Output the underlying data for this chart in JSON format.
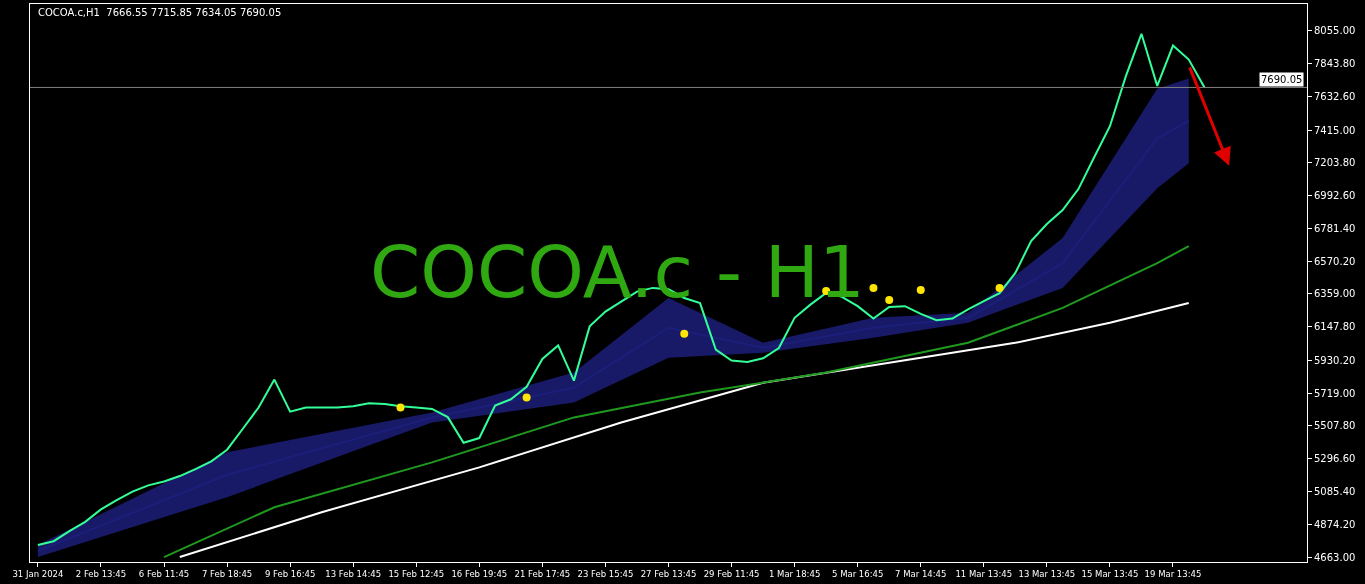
{
  "chart_data": {
    "type": "line",
    "title": "COCOA.c,H1  7666.55 7715.85 7634.05 7690.05",
    "annotations": [
      "COCOA.c - H1"
    ],
    "categories": [
      "31 Jan 2024",
      null,
      null,
      null,
      "2 Feb 13:45",
      null,
      null,
      null,
      "6 Feb 11:45",
      null,
      null,
      null,
      "7 Feb 18:45",
      null,
      null,
      null,
      "9 Feb 16:45",
      null,
      null,
      null,
      "13 Feb 14:45",
      null,
      null,
      null,
      "15 Feb 12:45",
      null,
      null,
      null,
      "16 Feb 19:45",
      null,
      null,
      null,
      "21 Feb 17:45",
      null,
      null,
      null,
      "23 Feb 15:45",
      null,
      null,
      null,
      "27 Feb 13:45",
      null,
      null,
      null,
      "29 Feb 11:45",
      null,
      null,
      null,
      "1 Mar 18:45",
      null,
      null,
      null,
      "5 Mar 16:45",
      null,
      null,
      null,
      "7 Mar 14:45",
      null,
      null,
      null,
      "11 Mar 13:45",
      null,
      null,
      null,
      "13 Mar 13:45",
      null,
      null,
      null,
      "15 Mar 13:45",
      null,
      null,
      null,
      "19 Mar 13:45",
      null,
      null,
      null,
      null,
      null,
      null,
      null,
      null
    ],
    "series": [
      {
        "color": "#1c1f7a",
        "values": [
          4702,
          null,
          null,
          null,
          null,
          null,
          null,
          null,
          null,
          null,
          null,
          null,
          5193,
          null,
          null,
          null,
          null,
          null,
          null,
          null,
          null,
          null,
          null,
          null,
          null,
          5562,
          null,
          null,
          null,
          null,
          null,
          null,
          null,
          null,
          5755,
          null,
          null,
          null,
          null,
          null,
          6141,
          null,
          null,
          null,
          null,
          null,
          6012,
          null,
          null,
          null,
          null,
          null,
          null,
          6141,
          null,
          null,
          null,
          null,
          null,
          6205,
          null,
          null,
          null,
          null,
          null,
          6558,
          null,
          null,
          null,
          null,
          null,
          7361,
          null,
          7474,
          null,
          null,
          null,
          null,
          null,
          null,
          null
        ],
        "lower": [
          4663,
          null,
          null,
          null,
          null,
          null,
          null,
          null,
          null,
          null,
          null,
          null,
          5049,
          null,
          null,
          null,
          null,
          null,
          null,
          null,
          null,
          null,
          null,
          null,
          null,
          5530,
          null,
          null,
          null,
          null,
          null,
          null,
          null,
          null,
          5659,
          null,
          null,
          null,
          null,
          null,
          5948,
          null,
          null,
          null,
          null,
          null,
          5980,
          null,
          null,
          null,
          null,
          null,
          null,
          6076,
          null,
          null,
          null,
          null,
          null,
          6173,
          null,
          null,
          null,
          null,
          null,
          6398,
          null,
          null,
          null,
          null,
          null,
          7040,
          null,
          7201,
          null,
          null,
          null,
          null,
          null,
          null,
          null
        ],
        "upper": [
          4740,
          null,
          null,
          null,
          null,
          null,
          null,
          null,
          null,
          null,
          null,
          null,
          5338,
          null,
          null,
          null,
          null,
          null,
          null,
          null,
          null,
          null,
          null,
          null,
          null,
          5595,
          null,
          null,
          null,
          null,
          null,
          null,
          null,
          null,
          5852,
          null,
          null,
          null,
          null,
          null,
          6333,
          null,
          null,
          null,
          null,
          null,
          6044,
          null,
          null,
          null,
          null,
          null,
          null,
          6205,
          null,
          null,
          null,
          null,
          null,
          6237,
          null,
          null,
          null,
          null,
          null,
          6719,
          null,
          null,
          null,
          null,
          null,
          7682,
          null,
          7747,
          null,
          null,
          null,
          null,
          null,
          null,
          null
        ]
      },
      {
        "color": "#ffffff",
        "values": [
          null,
          null,
          null,
          null,
          null,
          null,
          null,
          null,
          null,
          4663,
          null,
          null,
          null,
          null,
          null,
          null,
          null,
          null,
          4952,
          null,
          null,
          null,
          null,
          null,
          null,
          null,
          null,
          null,
          5241,
          null,
          null,
          null,
          null,
          null,
          null,
          null,
          null,
          5530,
          null,
          null,
          null,
          null,
          null,
          null,
          null,
          null,
          5787,
          null,
          null,
          null,
          null,
          null,
          null,
          null,
          null,
          null,
          5948,
          null,
          null,
          null,
          null,
          null,
          6044,
          null,
          null,
          null,
          null,
          null,
          6173,
          null,
          null,
          null,
          null,
          6301,
          null,
          null,
          null,
          null,
          null,
          null,
          null
        ]
      },
      {
        "color": "#1f9a1f",
        "values": [
          null,
          null,
          null,
          null,
          null,
          null,
          null,
          null,
          4663,
          null,
          null,
          null,
          null,
          null,
          null,
          4984,
          null,
          null,
          null,
          null,
          null,
          null,
          null,
          null,
          null,
          5273,
          null,
          null,
          null,
          null,
          null,
          null,
          null,
          null,
          5563,
          null,
          null,
          null,
          null,
          null,
          null,
          null,
          5723,
          null,
          null,
          null,
          null,
          null,
          null,
          null,
          5852,
          null,
          null,
          null,
          null,
          null,
          null,
          null,
          null,
          6044,
          null,
          null,
          null,
          null,
          null,
          6269,
          null,
          null,
          null,
          null,
          null,
          6558,
          null,
          6667,
          null,
          null,
          null,
          null,
          null,
          null,
          null
        ]
      },
      {
        "color": "#33ff99",
        "values": [
          4740,
          4765,
          4830,
          4890,
          4970,
          5030,
          5085,
          5125,
          5150,
          5185,
          5230,
          5280,
          5355,
          5490,
          5627,
          5807,
          5600,
          5627,
          5627,
          5627,
          5635,
          5655,
          5650,
          5635,
          5627,
          5618,
          5565,
          5400,
          5430,
          5640,
          5680,
          5760,
          5940,
          6027,
          5800,
          6150,
          6245,
          6310,
          6374,
          6398,
          6390,
          6333,
          6300,
          6000,
          5930,
          5920,
          5944,
          6010,
          6205,
          6290,
          6366,
          6340,
          6280,
          6200,
          6275,
          6280,
          6230,
          6190,
          6200,
          6260,
          6312,
          6364,
          6494,
          6700,
          6810,
          6900,
          7035,
          7240,
          7440,
          7760,
          8036,
          7700,
          7960,
          7870,
          7690,
          null,
          null,
          null,
          null,
          null,
          null
        ]
      },
      {
        "type": "scatter",
        "color": "#ffe600",
        "marker": "circle",
        "values": [
          null,
          null,
          null,
          null,
          null,
          null,
          null,
          null,
          null,
          null,
          null,
          null,
          null,
          null,
          null,
          null,
          null,
          null,
          null,
          null,
          null,
          null,
          null,
          5627,
          null,
          null,
          null,
          null,
          null,
          null,
          null,
          5691,
          null,
          null,
          null,
          null,
          null,
          null,
          null,
          null,
          null,
          6102,
          null,
          null,
          null,
          null,
          null,
          null,
          null,
          null,
          6378,
          null,
          null,
          6398,
          6320,
          null,
          6385,
          null,
          null,
          null,
          null,
          6398,
          null,
          null,
          null,
          null,
          null,
          null,
          null,
          null,
          null,
          null,
          null,
          null,
          null,
          null,
          null,
          null,
          null,
          null,
          null
        ]
      }
    ],
    "ref_lines": [
      {
        "axis": "y",
        "value": 7690.05,
        "label": "7690.05",
        "color": "#808080"
      }
    ],
    "ylim": [
      4631,
      8228
    ],
    "yticks": [
      {
        "value": 4663,
        "label": "4663.00"
      },
      {
        "value": 4874.2,
        "label": "4874.20"
      },
      {
        "value": 5085.4,
        "label": "5085.40"
      },
      {
        "value": 5296.6,
        "label": "5296.60"
      },
      {
        "value": 5507.8,
        "label": "5507.80"
      },
      {
        "value": 5719,
        "label": "5719.00"
      },
      {
        "value": 5930.2,
        "label": "5930.20"
      },
      {
        "value": 6147.8,
        "label": "6147.80"
      },
      {
        "value": 6359,
        "label": "6359.00"
      },
      {
        "value": 6570.2,
        "label": "6570.20"
      },
      {
        "value": 6781.4,
        "label": "6781.40"
      },
      {
        "value": 6992.6,
        "label": "6992.60"
      },
      {
        "value": 7203.8,
        "label": "7203.80"
      },
      {
        "value": 7415,
        "label": "7415.00"
      },
      {
        "value": 7632.6,
        "label": "7632.60"
      },
      {
        "value": 7843.8,
        "label": "7843.80"
      },
      {
        "value": 8055,
        "label": "8055.00"
      }
    ],
    "grid": false
  }
}
